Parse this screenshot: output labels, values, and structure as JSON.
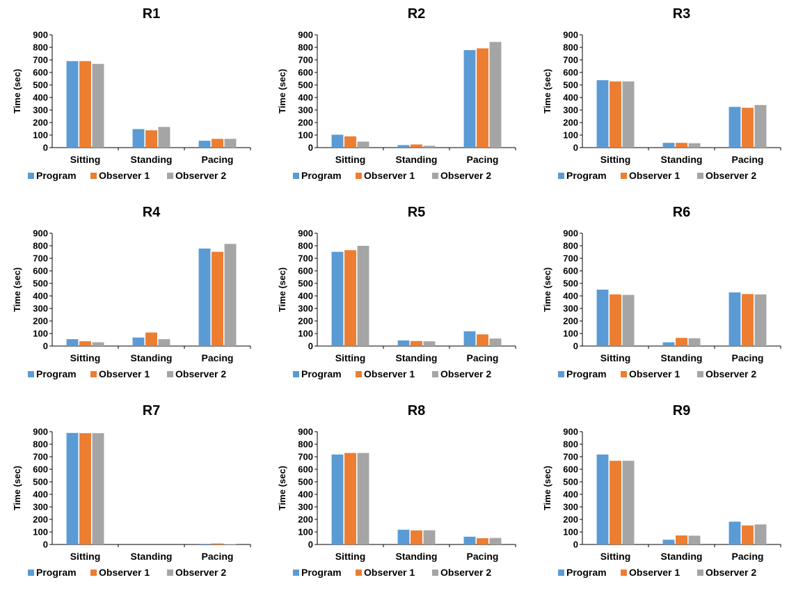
{
  "figure": {
    "legend": [
      "Program",
      "Observer 1",
      "Observer 2"
    ],
    "colors": [
      "#5B9BD5",
      "#ED7D31",
      "#A5A5A5"
    ]
  },
  "chart_data": [
    {
      "type": "bar",
      "title": "R1",
      "ylabel": "Time (sec)",
      "xlabel": "",
      "ylim": [
        0,
        900
      ],
      "yticks": [
        0,
        100,
        200,
        300,
        400,
        500,
        600,
        700,
        800,
        900
      ],
      "categories": [
        "Sitting",
        "Standing",
        "Pacing"
      ],
      "series": [
        {
          "name": "Program",
          "values": [
            690,
            148,
            55
          ]
        },
        {
          "name": "Observer 1",
          "values": [
            690,
            138,
            70
          ]
        },
        {
          "name": "Observer 2",
          "values": [
            668,
            165,
            70
          ]
        }
      ],
      "legend_position": "bottom"
    },
    {
      "type": "bar",
      "title": "R2",
      "ylabel": "Time (sec)",
      "xlabel": "",
      "ylim": [
        0,
        900
      ],
      "yticks": [
        0,
        100,
        200,
        300,
        400,
        500,
        600,
        700,
        800,
        900
      ],
      "categories": [
        "Sitting",
        "Standing",
        "Pacing"
      ],
      "series": [
        {
          "name": "Program",
          "values": [
            103,
            20,
            778
          ]
        },
        {
          "name": "Observer 1",
          "values": [
            90,
            25,
            792
          ]
        },
        {
          "name": "Observer 2",
          "values": [
            48,
            15,
            843
          ]
        }
      ],
      "legend_position": "bottom"
    },
    {
      "type": "bar",
      "title": "R3",
      "ylabel": "Time (sec)",
      "xlabel": "",
      "ylim": [
        0,
        900
      ],
      "yticks": [
        0,
        100,
        200,
        300,
        400,
        500,
        600,
        700,
        800,
        900
      ],
      "categories": [
        "Sitting",
        "Standing",
        "Pacing"
      ],
      "series": [
        {
          "name": "Program",
          "values": [
            538,
            38,
            325
          ]
        },
        {
          "name": "Observer 1",
          "values": [
            528,
            38,
            318
          ]
        },
        {
          "name": "Observer 2",
          "values": [
            528,
            35,
            340
          ]
        }
      ],
      "legend_position": "bottom"
    },
    {
      "type": "bar",
      "title": "R4",
      "ylabel": "Time (sec)",
      "xlabel": "",
      "ylim": [
        0,
        900
      ],
      "yticks": [
        0,
        100,
        200,
        300,
        400,
        500,
        600,
        700,
        800,
        900
      ],
      "categories": [
        "Sitting",
        "Standing",
        "Pacing"
      ],
      "series": [
        {
          "name": "Program",
          "values": [
            55,
            68,
            778
          ]
        },
        {
          "name": "Observer 1",
          "values": [
            38,
            108,
            752
          ]
        },
        {
          "name": "Observer 2",
          "values": [
            30,
            55,
            815
          ]
        }
      ],
      "legend_position": "bottom"
    },
    {
      "type": "bar",
      "title": "R5",
      "ylabel": "Time (sec)",
      "xlabel": "",
      "ylim": [
        0,
        900
      ],
      "yticks": [
        0,
        100,
        200,
        300,
        400,
        500,
        600,
        700,
        800,
        900
      ],
      "categories": [
        "Sitting",
        "Standing",
        "Pacing"
      ],
      "series": [
        {
          "name": "Program",
          "values": [
            752,
            45,
            118
          ]
        },
        {
          "name": "Observer 1",
          "values": [
            765,
            40,
            93
          ]
        },
        {
          "name": "Observer 2",
          "values": [
            800,
            38,
            60
          ]
        }
      ],
      "legend_position": "bottom"
    },
    {
      "type": "bar",
      "title": "R6",
      "ylabel": "Time (sec)",
      "xlabel": "",
      "ylim": [
        0,
        900
      ],
      "yticks": [
        0,
        100,
        200,
        300,
        400,
        500,
        600,
        700,
        800,
        900
      ],
      "categories": [
        "Sitting",
        "Standing",
        "Pacing"
      ],
      "series": [
        {
          "name": "Program",
          "values": [
            450,
            30,
            428
          ]
        },
        {
          "name": "Observer 1",
          "values": [
            412,
            65,
            415
          ]
        },
        {
          "name": "Observer 2",
          "values": [
            408,
            62,
            412
          ]
        }
      ],
      "legend_position": "bottom"
    },
    {
      "type": "bar",
      "title": "R7",
      "ylabel": "Time (sec)",
      "xlabel": "",
      "ylim": [
        0,
        900
      ],
      "yticks": [
        0,
        100,
        200,
        300,
        400,
        500,
        600,
        700,
        800,
        900
      ],
      "categories": [
        "Sitting",
        "Standing",
        "Pacing"
      ],
      "series": [
        {
          "name": "Program",
          "values": [
            890,
            0,
            5
          ]
        },
        {
          "name": "Observer 1",
          "values": [
            888,
            0,
            8
          ]
        },
        {
          "name": "Observer 2",
          "values": [
            888,
            0,
            3
          ]
        }
      ],
      "legend_position": "bottom"
    },
    {
      "type": "bar",
      "title": "R8",
      "ylabel": "Time (sec)",
      "xlabel": "",
      "ylim": [
        0,
        900
      ],
      "yticks": [
        0,
        100,
        200,
        300,
        400,
        500,
        600,
        700,
        800,
        900
      ],
      "categories": [
        "Sitting",
        "Standing",
        "Pacing"
      ],
      "series": [
        {
          "name": "Program",
          "values": [
            718,
            118,
            62
          ]
        },
        {
          "name": "Observer 1",
          "values": [
            730,
            112,
            50
          ]
        },
        {
          "name": "Observer 2",
          "values": [
            730,
            113,
            52
          ]
        }
      ],
      "legend_position": "bottom"
    },
    {
      "type": "bar",
      "title": "R9",
      "ylabel": "Time (sec)",
      "xlabel": "",
      "ylim": [
        0,
        900
      ],
      "yticks": [
        0,
        100,
        200,
        300,
        400,
        500,
        600,
        700,
        800,
        900
      ],
      "categories": [
        "Sitting",
        "Standing",
        "Pacing"
      ],
      "series": [
        {
          "name": "Program",
          "values": [
            718,
            38,
            182
          ]
        },
        {
          "name": "Observer 1",
          "values": [
            668,
            72,
            152
          ]
        },
        {
          "name": "Observer 2",
          "values": [
            668,
            70,
            160
          ]
        }
      ],
      "legend_position": "bottom"
    }
  ]
}
